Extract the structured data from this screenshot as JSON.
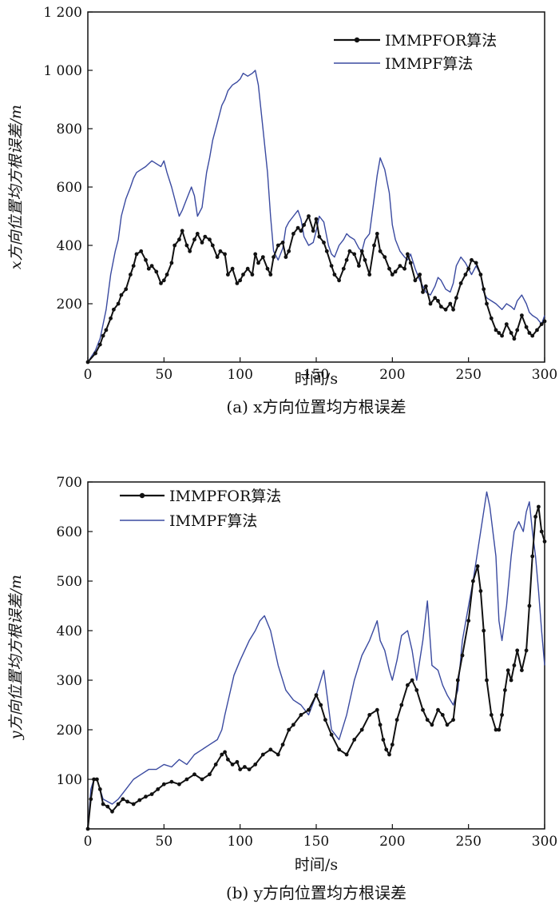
{
  "chart_data": [
    {
      "type": "line",
      "id": "a",
      "caption": "(a) x方向位置均方根误差",
      "xlabel": "时间/s",
      "ylabel": "x方向位置均方根误差/m",
      "xlim": [
        0,
        300
      ],
      "ylim": [
        0,
        1200
      ],
      "xticks": [
        0,
        50,
        100,
        150,
        200,
        250,
        300
      ],
      "yticks": [
        200,
        400,
        600,
        800,
        1000,
        1200
      ],
      "ytick_labels": [
        "200",
        "400",
        "600",
        "800",
        "1 000",
        "1 200"
      ],
      "grid": false,
      "legend_position": "top-right",
      "colors": {
        "IMMPFOR": "#111111",
        "IMMPF": "#3a4aa0"
      },
      "series": [
        {
          "name": "IMMPFOR算法",
          "style": "line-with-dots",
          "x": [
            0,
            5,
            8,
            10,
            12,
            15,
            17,
            20,
            22,
            25,
            28,
            30,
            32,
            35,
            38,
            40,
            42,
            45,
            48,
            50,
            52,
            55,
            57,
            60,
            62,
            65,
            67,
            70,
            72,
            75,
            77,
            80,
            82,
            85,
            87,
            90,
            92,
            95,
            98,
            100,
            102,
            105,
            108,
            110,
            112,
            115,
            118,
            120,
            122,
            125,
            128,
            130,
            132,
            135,
            138,
            140,
            142,
            145,
            148,
            150,
            152,
            155,
            157,
            160,
            162,
            165,
            168,
            170,
            172,
            175,
            178,
            180,
            182,
            185,
            188,
            190,
            192,
            195,
            198,
            200,
            202,
            205,
            208,
            210,
            212,
            215,
            218,
            220,
            222,
            225,
            228,
            230,
            232,
            235,
            238,
            240,
            242,
            245,
            248,
            250,
            252,
            255,
            258,
            260,
            262,
            265,
            268,
            270,
            272,
            275,
            278,
            280,
            282,
            285,
            288,
            290,
            292,
            295,
            298,
            300
          ],
          "values": [
            0,
            30,
            60,
            90,
            110,
            150,
            180,
            200,
            230,
            250,
            300,
            330,
            370,
            380,
            350,
            320,
            330,
            310,
            270,
            280,
            300,
            340,
            400,
            420,
            450,
            400,
            380,
            420,
            440,
            410,
            430,
            420,
            400,
            360,
            380,
            370,
            300,
            320,
            270,
            280,
            300,
            320,
            300,
            370,
            340,
            360,
            320,
            300,
            360,
            400,
            410,
            360,
            380,
            440,
            460,
            450,
            470,
            500,
            450,
            490,
            430,
            410,
            380,
            330,
            300,
            280,
            320,
            350,
            380,
            370,
            330,
            380,
            350,
            300,
            400,
            440,
            380,
            360,
            320,
            300,
            310,
            330,
            320,
            370,
            340,
            280,
            300,
            240,
            260,
            200,
            220,
            210,
            190,
            180,
            200,
            180,
            220,
            270,
            300,
            320,
            350,
            340,
            300,
            250,
            200,
            150,
            110,
            100,
            90,
            130,
            100,
            80,
            110,
            160,
            120,
            100,
            90,
            110,
            130,
            140
          ]
        },
        {
          "name": "IMMPF算法",
          "style": "line",
          "x": [
            0,
            5,
            8,
            10,
            12,
            15,
            18,
            20,
            22,
            25,
            28,
            30,
            32,
            35,
            38,
            40,
            42,
            45,
            48,
            50,
            52,
            55,
            58,
            60,
            62,
            65,
            68,
            70,
            72,
            75,
            78,
            80,
            82,
            85,
            88,
            90,
            92,
            95,
            98,
            100,
            102,
            105,
            108,
            110,
            112,
            115,
            118,
            120,
            122,
            125,
            128,
            130,
            132,
            135,
            138,
            140,
            142,
            145,
            148,
            150,
            152,
            155,
            158,
            160,
            162,
            165,
            168,
            170,
            172,
            175,
            178,
            180,
            182,
            185,
            188,
            190,
            192,
            195,
            198,
            200,
            202,
            205,
            208,
            210,
            212,
            215,
            218,
            220,
            222,
            225,
            228,
            230,
            232,
            235,
            238,
            240,
            242,
            245,
            248,
            250,
            252,
            255,
            258,
            260,
            262,
            265,
            268,
            270,
            272,
            275,
            278,
            280,
            282,
            285,
            288,
            290,
            292,
            295,
            298,
            300
          ],
          "values": [
            0,
            40,
            80,
            130,
            180,
            300,
            380,
            420,
            500,
            560,
            600,
            630,
            650,
            660,
            670,
            680,
            690,
            680,
            670,
            690,
            650,
            600,
            540,
            500,
            520,
            560,
            600,
            570,
            500,
            530,
            650,
            700,
            760,
            820,
            880,
            900,
            930,
            950,
            960,
            970,
            990,
            980,
            990,
            1000,
            950,
            800,
            650,
            500,
            380,
            350,
            390,
            460,
            480,
            500,
            520,
            490,
            430,
            400,
            410,
            450,
            500,
            480,
            400,
            370,
            360,
            400,
            420,
            440,
            430,
            420,
            390,
            380,
            420,
            440,
            560,
            640,
            700,
            660,
            580,
            470,
            420,
            380,
            360,
            350,
            370,
            320,
            280,
            260,
            240,
            230,
            260,
            290,
            280,
            250,
            240,
            270,
            330,
            360,
            340,
            320,
            300,
            330,
            300,
            240,
            220,
            210,
            200,
            190,
            180,
            200,
            190,
            180,
            210,
            230,
            200,
            170,
            160,
            150,
            130,
            160
          ]
        }
      ]
    },
    {
      "type": "line",
      "id": "b",
      "caption": "(b) y方向位置均方根误差",
      "xlabel": "时间/s",
      "ylabel": "y方向位置均方根误差/m",
      "xlim": [
        0,
        300
      ],
      "ylim": [
        0,
        700
      ],
      "xticks": [
        0,
        50,
        100,
        150,
        200,
        250,
        300
      ],
      "yticks": [
        100,
        200,
        300,
        400,
        500,
        600,
        700
      ],
      "ytick_labels": [
        "100",
        "200",
        "300",
        "400",
        "500",
        "600",
        "700"
      ],
      "grid": false,
      "legend_position": "top-left",
      "colors": {
        "IMMPFOR": "#111111",
        "IMMPF": "#3a4aa0"
      },
      "series": [
        {
          "name": "IMMPFOR算法",
          "style": "line-with-dots",
          "x": [
            0,
            2,
            4,
            6,
            8,
            10,
            13,
            16,
            20,
            23,
            26,
            30,
            34,
            38,
            42,
            46,
            50,
            55,
            60,
            65,
            70,
            75,
            80,
            84,
            88,
            90,
            92,
            95,
            98,
            100,
            103,
            106,
            110,
            115,
            120,
            125,
            128,
            132,
            135,
            140,
            145,
            150,
            153,
            156,
            160,
            165,
            170,
            175,
            180,
            185,
            190,
            192,
            194,
            196,
            198,
            200,
            203,
            206,
            210,
            213,
            216,
            220,
            223,
            226,
            230,
            233,
            236,
            240,
            243,
            246,
            250,
            253,
            256,
            258,
            260,
            262,
            265,
            268,
            270,
            272,
            274,
            276,
            278,
            280,
            282,
            285,
            288,
            290,
            292,
            294,
            296,
            298,
            300
          ],
          "values": [
            0,
            60,
            100,
            100,
            80,
            50,
            45,
            35,
            50,
            60,
            55,
            50,
            58,
            65,
            70,
            80,
            90,
            95,
            90,
            100,
            110,
            100,
            110,
            130,
            150,
            155,
            140,
            130,
            135,
            120,
            125,
            120,
            130,
            150,
            160,
            150,
            170,
            200,
            210,
            230,
            240,
            270,
            250,
            220,
            190,
            160,
            150,
            180,
            200,
            230,
            240,
            210,
            180,
            160,
            150,
            170,
            220,
            250,
            290,
            300,
            280,
            240,
            220,
            210,
            240,
            230,
            210,
            220,
            300,
            350,
            420,
            500,
            530,
            480,
            400,
            300,
            230,
            200,
            200,
            230,
            280,
            320,
            300,
            330,
            360,
            320,
            360,
            450,
            550,
            630,
            650,
            600,
            580
          ]
        },
        {
          "name": "IMMPF算法",
          "style": "line",
          "x": [
            0,
            2,
            4,
            6,
            8,
            10,
            13,
            16,
            20,
            25,
            30,
            35,
            40,
            45,
            50,
            55,
            60,
            65,
            70,
            75,
            80,
            85,
            88,
            90,
            93,
            96,
            100,
            103,
            106,
            110,
            113,
            116,
            120,
            125,
            130,
            135,
            140,
            145,
            150,
            155,
            160,
            165,
            170,
            175,
            180,
            185,
            190,
            192,
            195,
            198,
            200,
            203,
            206,
            210,
            213,
            216,
            220,
            223,
            226,
            230,
            233,
            236,
            240,
            243,
            246,
            250,
            253,
            256,
            258,
            260,
            262,
            264,
            266,
            268,
            270,
            272,
            275,
            278,
            280,
            283,
            286,
            288,
            290,
            292,
            294,
            296,
            298,
            300
          ],
          "values": [
            0,
            80,
            100,
            100,
            80,
            60,
            55,
            50,
            60,
            80,
            100,
            110,
            120,
            120,
            130,
            125,
            140,
            130,
            150,
            160,
            170,
            180,
            200,
            230,
            270,
            310,
            340,
            360,
            380,
            400,
            420,
            430,
            400,
            330,
            280,
            260,
            250,
            230,
            270,
            320,
            200,
            180,
            230,
            300,
            350,
            380,
            420,
            380,
            360,
            320,
            300,
            340,
            390,
            400,
            360,
            300,
            380,
            460,
            330,
            320,
            290,
            270,
            250,
            280,
            380,
            450,
            500,
            560,
            600,
            640,
            680,
            650,
            600,
            550,
            420,
            380,
            450,
            550,
            600,
            620,
            600,
            640,
            660,
            600,
            550,
            480,
            400,
            330
          ]
        }
      ]
    }
  ]
}
